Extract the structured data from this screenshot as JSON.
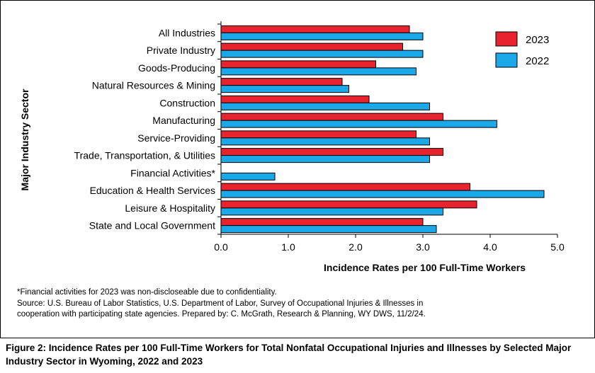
{
  "chart_data": {
    "type": "bar",
    "orientation": "horizontal",
    "categories": [
      "All Industries",
      "Private Industry",
      "Goods-Producing",
      "Natural Resources & Mining",
      "Construction",
      "Manufacturing",
      "Service-Providing",
      "Trade, Transportation, & Utilities",
      "Financial Activities*",
      "Education & Health Services",
      "Leisure & Hospitality",
      "State and Local Government"
    ],
    "series": [
      {
        "name": "2023",
        "color": "#e8232e",
        "values": [
          2.8,
          2.7,
          2.3,
          1.8,
          2.2,
          3.3,
          2.9,
          3.3,
          null,
          3.7,
          3.8,
          3.0
        ]
      },
      {
        "name": "2022",
        "color": "#1aa8e8",
        "values": [
          3.0,
          3.0,
          2.9,
          1.9,
          3.1,
          4.1,
          3.1,
          3.1,
          0.8,
          4.8,
          3.3,
          3.2
        ]
      }
    ],
    "xlabel": "Incidence Rates per 100 Full-Time Workers",
    "ylabel": "Major Industry Sector",
    "xlim": [
      0,
      5
    ],
    "xticks": [
      "0.0",
      "1.0",
      "2.0",
      "3.0",
      "4.0",
      "5.0"
    ],
    "grid": false,
    "legend_position": "top-right"
  },
  "notes": {
    "footnote": "*Financial activities for 2023 was non-discloseable due to confidentiality.",
    "source_line1": "Source: U.S. Bureau of Labor Statistics, U.S. Department of Labor, Survey of Occupational Injuries & Illnesses in",
    "source_line2": "cooperation with participating state agencies. Prepared by: C. McGrath, Research & Planning, WY DWS, 11/2/24."
  },
  "caption": "Figure 2: Incidence Rates per 100 Full-Time Workers for Total Nonfatal Occupational Injuries and Illnesses by Selected Major Industry Sector in Wyoming, 2022 and 2023"
}
